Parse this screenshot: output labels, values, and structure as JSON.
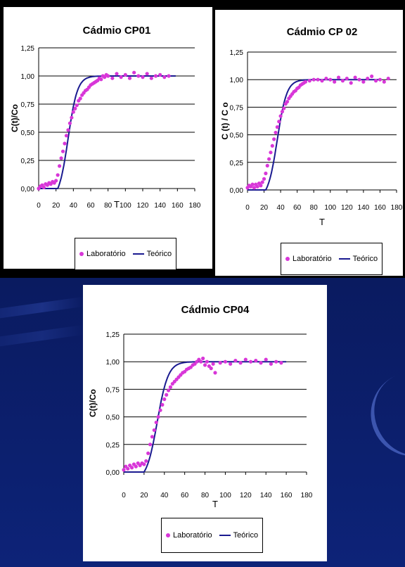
{
  "colors": {
    "lab": "#d836d8",
    "theory": "#1a1a90",
    "grid": "#000000"
  },
  "chart_data": [
    {
      "type": "scatter",
      "title": "Cádmio CP01",
      "xlabel": "T",
      "ylabel": "C(t)/Co",
      "xlim": [
        0,
        180
      ],
      "ylim": [
        0,
        1.25
      ],
      "x_ticks": [
        "0",
        "20",
        "40",
        "60",
        "80",
        "100",
        "120",
        "140",
        "160",
        "180"
      ],
      "y_ticks": [
        "0,00",
        "0,25",
        "0,50",
        "0,75",
        "1,00",
        "1,25"
      ],
      "legend": [
        "Laboratório",
        "Teórico"
      ],
      "lab_end": 150,
      "theory_end": 158,
      "lab_points": [
        [
          0,
          0.0
        ],
        [
          2,
          0.02
        ],
        [
          4,
          0.03
        ],
        [
          6,
          0.01
        ],
        [
          8,
          0.04
        ],
        [
          10,
          0.03
        ],
        [
          12,
          0.05
        ],
        [
          14,
          0.04
        ],
        [
          16,
          0.06
        ],
        [
          18,
          0.05
        ],
        [
          20,
          0.07
        ],
        [
          22,
          0.12
        ],
        [
          24,
          0.2
        ],
        [
          26,
          0.27
        ],
        [
          28,
          0.33
        ],
        [
          30,
          0.4
        ],
        [
          32,
          0.47
        ],
        [
          34,
          0.52
        ],
        [
          36,
          0.58
        ],
        [
          38,
          0.63
        ],
        [
          40,
          0.68
        ],
        [
          42,
          0.71
        ],
        [
          44,
          0.74
        ],
        [
          46,
          0.78
        ],
        [
          48,
          0.8
        ],
        [
          50,
          0.83
        ],
        [
          52,
          0.85
        ],
        [
          54,
          0.87
        ],
        [
          56,
          0.88
        ],
        [
          58,
          0.9
        ],
        [
          60,
          0.92
        ],
        [
          62,
          0.93
        ],
        [
          64,
          0.94
        ],
        [
          66,
          0.95
        ],
        [
          68,
          0.96
        ],
        [
          70,
          0.98
        ],
        [
          72,
          0.97
        ],
        [
          74,
          1.0
        ],
        [
          76,
          0.99
        ],
        [
          78,
          1.01
        ],
        [
          80,
          1.0
        ],
        [
          85,
          0.98
        ],
        [
          90,
          1.02
        ],
        [
          95,
          0.99
        ],
        [
          100,
          1.01
        ],
        [
          105,
          0.98
        ],
        [
          110,
          1.03
        ],
        [
          115,
          1.0
        ],
        [
          120,
          0.99
        ],
        [
          125,
          1.02
        ],
        [
          130,
          0.98
        ],
        [
          135,
          1.0
        ],
        [
          140,
          1.01
        ],
        [
          145,
          0.99
        ],
        [
          150,
          1.0
        ]
      ],
      "theory_params": {
        "x0": 22,
        "x50": 34,
        "k": 0.085
      }
    },
    {
      "type": "scatter",
      "title": "Cádmio CP 02",
      "xlabel": "T",
      "ylabel": "C (t) / C o",
      "xlim": [
        0,
        180
      ],
      "ylim": [
        0,
        1.25
      ],
      "x_ticks": [
        "0",
        "20",
        "40",
        "60",
        "80",
        "100",
        "120",
        "140",
        "160",
        "180"
      ],
      "y_ticks": [
        "0,00",
        "0,25",
        "0,50",
        "0,75",
        "1,00",
        "1,25"
      ],
      "legend": [
        "Laboratório",
        "Teórico"
      ],
      "lab_end": 170,
      "theory_end": 158,
      "lab_points": [
        [
          0,
          0.02
        ],
        [
          2,
          0.04
        ],
        [
          4,
          0.03
        ],
        [
          6,
          0.05
        ],
        [
          8,
          0.02
        ],
        [
          10,
          0.05
        ],
        [
          12,
          0.03
        ],
        [
          14,
          0.06
        ],
        [
          16,
          0.04
        ],
        [
          18,
          0.07
        ],
        [
          20,
          0.1
        ],
        [
          22,
          0.15
        ],
        [
          24,
          0.22
        ],
        [
          26,
          0.28
        ],
        [
          28,
          0.34
        ],
        [
          30,
          0.4
        ],
        [
          32,
          0.46
        ],
        [
          34,
          0.52
        ],
        [
          36,
          0.57
        ],
        [
          38,
          0.62
        ],
        [
          40,
          0.67
        ],
        [
          42,
          0.71
        ],
        [
          44,
          0.74
        ],
        [
          46,
          0.78
        ],
        [
          48,
          0.8
        ],
        [
          50,
          0.83
        ],
        [
          52,
          0.85
        ],
        [
          54,
          0.87
        ],
        [
          56,
          0.89
        ],
        [
          58,
          0.9
        ],
        [
          60,
          0.92
        ],
        [
          62,
          0.93
        ],
        [
          64,
          0.95
        ],
        [
          66,
          0.96
        ],
        [
          68,
          0.97
        ],
        [
          70,
          0.98
        ],
        [
          75,
          0.99
        ],
        [
          80,
          1.0
        ],
        [
          85,
          1.0
        ],
        [
          90,
          0.99
        ],
        [
          95,
          1.01
        ],
        [
          100,
          1.0
        ],
        [
          105,
          0.98
        ],
        [
          110,
          1.02
        ],
        [
          115,
          0.99
        ],
        [
          120,
          1.01
        ],
        [
          125,
          0.97
        ],
        [
          130,
          1.02
        ],
        [
          135,
          1.0
        ],
        [
          140,
          0.98
        ],
        [
          145,
          1.01
        ],
        [
          150,
          1.03
        ],
        [
          155,
          0.99
        ],
        [
          160,
          1.0
        ],
        [
          165,
          0.98
        ],
        [
          170,
          1.01
        ]
      ],
      "theory_params": {
        "x0": 22,
        "x50": 36,
        "k": 0.08
      }
    },
    {
      "type": "scatter",
      "title": "Cádmio CP04",
      "xlabel": "T",
      "ylabel": "C(t)/Co",
      "xlim": [
        0,
        180
      ],
      "ylim": [
        0,
        1.25
      ],
      "x_ticks": [
        "0",
        "20",
        "40",
        "60",
        "80",
        "100",
        "120",
        "140",
        "160",
        "180"
      ],
      "y_ticks": [
        "0,00",
        "0,25",
        "0,50",
        "0,75",
        "1,00",
        "1,25"
      ],
      "legend": [
        "Laboratório",
        "Teórico"
      ],
      "lab_end": 155,
      "theory_end": 160,
      "lab_points": [
        [
          0,
          0.02
        ],
        [
          2,
          0.05
        ],
        [
          4,
          0.03
        ],
        [
          6,
          0.06
        ],
        [
          8,
          0.04
        ],
        [
          10,
          0.07
        ],
        [
          12,
          0.05
        ],
        [
          14,
          0.08
        ],
        [
          16,
          0.06
        ],
        [
          18,
          0.08
        ],
        [
          20,
          0.07
        ],
        [
          22,
          0.1
        ],
        [
          24,
          0.17
        ],
        [
          26,
          0.25
        ],
        [
          28,
          0.32
        ],
        [
          30,
          0.38
        ],
        [
          32,
          0.45
        ],
        [
          34,
          0.5
        ],
        [
          36,
          0.56
        ],
        [
          38,
          0.61
        ],
        [
          40,
          0.66
        ],
        [
          42,
          0.7
        ],
        [
          44,
          0.74
        ],
        [
          46,
          0.77
        ],
        [
          48,
          0.8
        ],
        [
          50,
          0.82
        ],
        [
          52,
          0.84
        ],
        [
          54,
          0.86
        ],
        [
          56,
          0.88
        ],
        [
          58,
          0.9
        ],
        [
          60,
          0.91
        ],
        [
          62,
          0.93
        ],
        [
          64,
          0.94
        ],
        [
          66,
          0.95
        ],
        [
          68,
          0.97
        ],
        [
          70,
          0.98
        ],
        [
          72,
          1.0
        ],
        [
          74,
          1.02
        ],
        [
          76,
          1.0
        ],
        [
          78,
          1.03
        ],
        [
          80,
          0.97
        ],
        [
          82,
          1.0
        ],
        [
          84,
          0.96
        ],
        [
          86,
          0.94
        ],
        [
          88,
          0.98
        ],
        [
          90,
          0.9
        ],
        [
          95,
          0.99
        ],
        [
          100,
          1.0
        ],
        [
          105,
          0.98
        ],
        [
          110,
          1.01
        ],
        [
          115,
          0.99
        ],
        [
          120,
          1.02
        ],
        [
          125,
          1.0
        ],
        [
          130,
          1.01
        ],
        [
          135,
          0.99
        ],
        [
          140,
          1.02
        ],
        [
          145,
          0.98
        ],
        [
          150,
          1.0
        ],
        [
          155,
          0.99
        ]
      ],
      "theory_params": {
        "x0": 20,
        "x50": 33,
        "k": 0.085
      }
    }
  ]
}
